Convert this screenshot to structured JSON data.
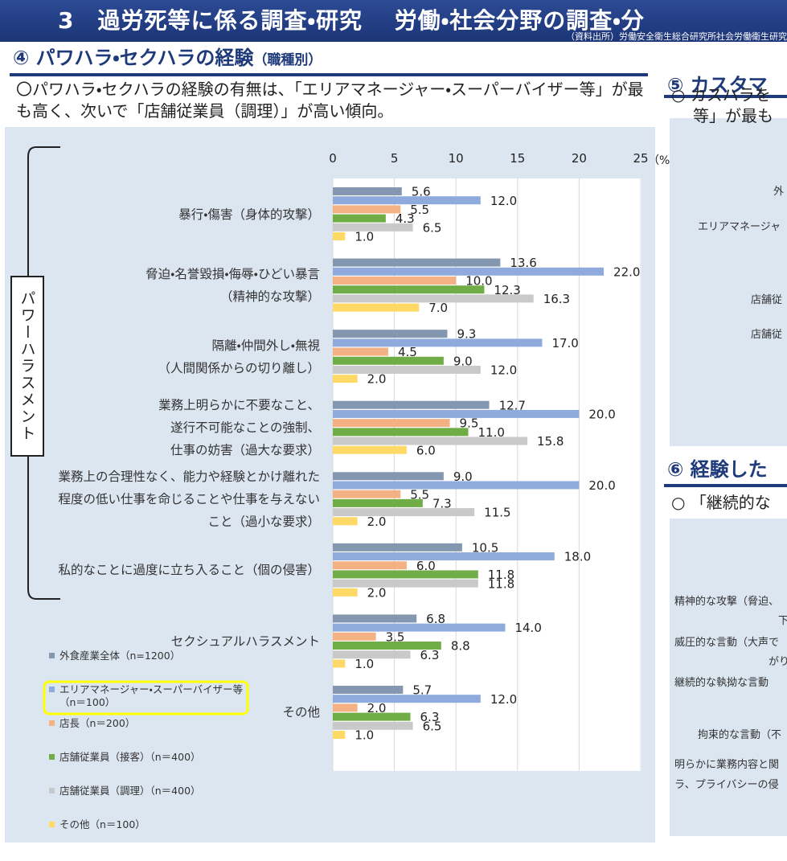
{
  "header": {
    "title": "3　過労死等に係る調査・研究　 労働・社会分野の調査・分",
    "source": "（資料出所）労働安全衛生総合研究所社会労働衛生研究"
  },
  "section": {
    "title": "④ パワハラ・セクハラの経験",
    "subtitle": "（職種別）",
    "description": "〇パワハラ・セクハラの経験の有無は、「エリアマネージャー・スーパーバイザー等」が最も高く、次いで「店舗従業員（調理）」が高い傾向。",
    "bracket_label": "パワーハラスメント"
  },
  "chart_data": {
    "type": "hbar",
    "categories": [
      "暴行・傷害（身体的攻撃）",
      "脅迫・名誉毀損・侮辱・ひどい暴言\n（精神的な攻撃）",
      "隔離・仲間外し・無視\n（人間関係からの切り離し）",
      "業務上明らかに不要なこと、\n遂行不可能なことの強制、\n仕事の妨害（過大な要求）",
      "業務上の合理性なく、能力や経験とかけ離れた\n程度の低い仕事を命じることや仕事を与えない\nこと（過小な要求）",
      "私的なことに過度に立ち入ること（個の侵害）",
      "セクシュアルハラスメント",
      "その他"
    ],
    "series": [
      {
        "name": "外食産業全体（n=1200）",
        "color": "#8497b0",
        "values": [
          5.6,
          13.6,
          9.3,
          12.7,
          9.0,
          10.5,
          6.8,
          5.7
        ],
        "value_labels": [
          "5.6",
          "13.6",
          "9.3",
          "12.7",
          "9.0",
          "10.5",
          "6.8",
          "5.7"
        ]
      },
      {
        "name": "エリアマネージャー・スーパーバイザー等（n＝100）",
        "color": "#8faadc",
        "values": [
          12.0,
          22.0,
          17.0,
          20.0,
          20.0,
          18.0,
          14.0,
          12.0
        ],
        "value_labels": [
          "12.0",
          "22.0",
          "17.0",
          "20.0",
          "20.0",
          "18.0",
          "14.0",
          "12.0"
        ]
      },
      {
        "name": "店長（n＝200）",
        "color": "#f4b183",
        "values": [
          5.5,
          10.0,
          4.5,
          9.5,
          5.5,
          6.0,
          3.5,
          2.0
        ],
        "value_labels": [
          "5.5",
          "10.0",
          "4.5",
          "9.5",
          "5.5",
          "6.0",
          "3.5",
          "2.0"
        ]
      },
      {
        "name": "店舗従業員（接客）（n＝400）",
        "color": "#70ad47",
        "values": [
          4.3,
          12.3,
          9.0,
          11.0,
          7.3,
          11.8,
          8.8,
          6.3
        ],
        "value_labels": [
          "4.3",
          "12.3",
          "9.0",
          "11.0",
          "7.3",
          "11.8",
          "8.8",
          "6.3"
        ]
      },
      {
        "name": "店舗従業員（調理）（n＝400）",
        "color": "#c9c9c9",
        "values": [
          6.5,
          16.3,
          12.0,
          15.8,
          11.5,
          11.8,
          6.3,
          6.5
        ],
        "value_labels": [
          "6.5",
          "16.3",
          "12.0",
          "15.8",
          "11.5",
          "11.8",
          "6.3",
          "6.5"
        ]
      },
      {
        "name": "その他（n＝100）",
        "color": "#ffd966",
        "values": [
          1.0,
          7.0,
          2.0,
          6.0,
          2.0,
          2.0,
          1.0,
          1.0
        ],
        "value_labels": [
          "1.0",
          "7.0",
          "2.0",
          "6.0",
          "2.0",
          "2.0",
          "1.0",
          "1.0"
        ]
      }
    ],
    "xlim": [
      0,
      25
    ],
    "xticks": [
      0,
      5,
      10,
      15,
      20,
      25
    ],
    "x_unit": "（%）",
    "grid": true
  },
  "right_panel": {
    "section5": {
      "title": "⑤ カスタマ",
      "text": [
        "○ カスハラを",
        "等」が最も"
      ],
      "labels": [
        "外",
        "エリアマネージャ",
        "店舗従",
        "店舗従"
      ]
    },
    "section6": {
      "title": "⑥ 経験した",
      "text": [
        "○ 「継続的な"
      ],
      "labels": [
        "精神的な攻撃（脅迫、",
        "下",
        "威圧的な言動（大声で",
        "がり",
        "継続的な執拗な言動",
        "拘束的な言動（不",
        "明らかに業務内容と関",
        "ラ、プライバシーの侵"
      ]
    }
  }
}
